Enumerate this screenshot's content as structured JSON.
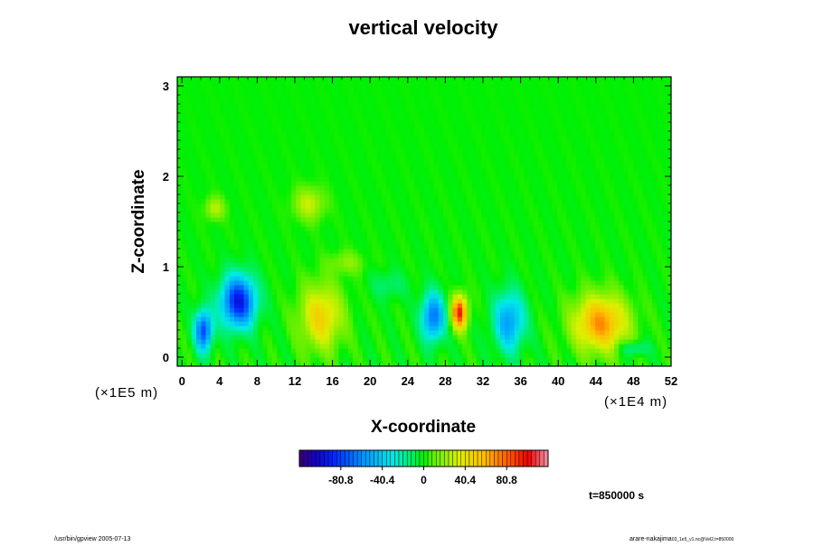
{
  "chart_data": {
    "type": "heatmap",
    "title": "vertical velocity",
    "xlabel": "X-coordinate",
    "ylabel": "Z-coordinate",
    "xlim": [
      -0.5,
      52
    ],
    "ylim": [
      -0.1,
      3.1
    ],
    "x_ticks": [
      0,
      4,
      8,
      12,
      16,
      20,
      24,
      28,
      32,
      36,
      40,
      44,
      48,
      52
    ],
    "x_tick_labels": [
      "0",
      "4",
      "8",
      "12",
      "16",
      "20",
      "24",
      "28",
      "32",
      "36",
      "40",
      "44",
      "48",
      "52"
    ],
    "y_ticks": [
      0,
      1,
      2,
      3
    ],
    "y_tick_labels": [
      "0",
      "1",
      "2",
      "3"
    ],
    "z_scale_label": "(×1E5 m)",
    "x_scale_label": "(×1E4 m)",
    "colorbar": {
      "min": -121.2,
      "max": 121.2,
      "ticks": [
        -80.8,
        -40.4,
        0,
        40.4,
        80.8
      ],
      "tick_labels": [
        "-80.8",
        "-40.4",
        "0",
        "40.4",
        "80.8"
      ]
    },
    "features": [
      {
        "x": 2.3,
        "z": 0.3,
        "value": -80,
        "rx": 0.9,
        "rz": 0.22
      },
      {
        "x": 6.0,
        "z": 0.62,
        "value": -95,
        "rx": 1.8,
        "rz": 0.28
      },
      {
        "x": 14.8,
        "z": 0.45,
        "value": 48,
        "rx": 2.2,
        "rz": 0.35
      },
      {
        "x": 26.7,
        "z": 0.45,
        "value": -68,
        "rx": 1.2,
        "rz": 0.26
      },
      {
        "x": 29.5,
        "z": 0.5,
        "value": 95,
        "rx": 0.8,
        "rz": 0.18
      },
      {
        "x": 34.8,
        "z": 0.4,
        "value": -55,
        "rx": 1.6,
        "rz": 0.32
      },
      {
        "x": 44.5,
        "z": 0.38,
        "value": 68,
        "rx": 2.8,
        "rz": 0.3
      },
      {
        "x": 3.5,
        "z": 1.65,
        "value": 28,
        "rx": 1.0,
        "rz": 0.12
      },
      {
        "x": 13.5,
        "z": 1.7,
        "value": 30,
        "rx": 1.6,
        "rz": 0.18
      },
      {
        "x": 17.5,
        "z": 1.05,
        "value": 18,
        "rx": 1.8,
        "rz": 0.12
      },
      {
        "x": 22.0,
        "z": 0.8,
        "value": -15,
        "rx": 1.8,
        "rz": 0.15
      },
      {
        "x": 48.0,
        "z": 0.1,
        "value": -25,
        "rx": 1.5,
        "rz": 0.08
      }
    ]
  },
  "time_label": "t=850000 s",
  "footer": {
    "left": "/usr/bin/gpview 2005-07-13",
    "right_main": "arare-nakajima",
    "right_sub": "03_1e5_v1.nc@Vel2,t=850000"
  }
}
